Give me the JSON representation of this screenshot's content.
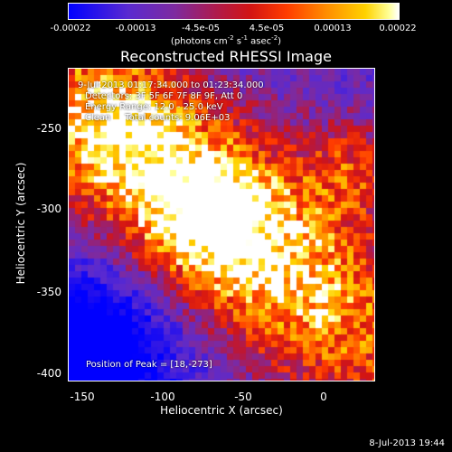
{
  "colorbar": {
    "ticks": [
      "-0.00022",
      "-0.00013",
      "-4.5e-05",
      "4.5e-05",
      "0.00013",
      "0.00022"
    ],
    "units_main": "(photons cm",
    "units_exp1": "-2",
    "units_s": " s",
    "units_exp2": "-1",
    "units_asec": " asec",
    "units_exp3": "-2",
    "units_close": ")"
  },
  "chart_data": {
    "type": "heatmap",
    "title": "Reconstructed RHESSI Image",
    "xlabel": "Heliocentric X (arcsec)",
    "ylabel": "Heliocentric Y (arcsec)",
    "xlim": [
      -158,
      33
    ],
    "ylim": [
      -405,
      -210
    ],
    "xticks": [
      "-150",
      "-100",
      "-50",
      "0"
    ],
    "yticks": [
      "-250",
      "-300",
      "-350",
      "-400"
    ],
    "color_range": [
      -0.00022,
      0.00022
    ],
    "peak_position": [
      18,
      -273
    ],
    "annotations": {
      "time": "9-Jul-2013 01:17:34.000 to 01:23:34.000",
      "detectors": "Detectors: 3F 5F 6F 7F 8F 9F, Att 0",
      "energy": "Energy Range: 12.0 - 25.0 keV",
      "clean": "Clean     Total counts: 9.06E+03",
      "peak": "Position of Peak = [18,-273]"
    }
  },
  "timestamp": "8-Jul-2013 19:44"
}
